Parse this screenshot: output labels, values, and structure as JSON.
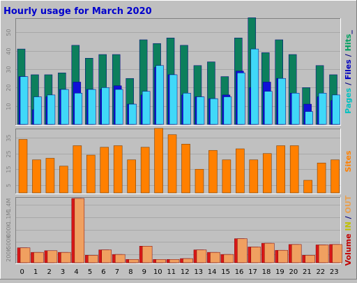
{
  "chart_data": {
    "type": "bar",
    "title": "Hourly usage for March 2020",
    "categories": [
      "0",
      "1",
      "2",
      "3",
      "4",
      "5",
      "6",
      "7",
      "8",
      "9",
      "10",
      "11",
      "12",
      "13",
      "14",
      "15",
      "16",
      "17",
      "18",
      "19",
      "20",
      "21",
      "22",
      "23"
    ],
    "panels": [
      {
        "id": "hits",
        "ylim": [
          0,
          57
        ],
        "yticks": [
          10,
          20,
          30,
          40,
          50
        ],
        "ylabel_parts": [
          {
            "text": "Pages",
            "color": "#00c0c0"
          },
          {
            "text": " / ",
            "color": "#000080"
          },
          {
            "text": "Files",
            "color": "#0000c0"
          },
          {
            "text": " / ",
            "color": "#000080"
          },
          {
            "text": "Hits",
            "color": "#00a060"
          },
          {
            "text": "_",
            "color": "#000080"
          }
        ],
        "series": [
          {
            "name": "Hits",
            "color": "#0c7f5c",
            "values": [
              41,
              27,
              27,
              28,
              43,
              36,
              38,
              38,
              25,
              46,
              44,
              47,
              43,
              32,
              34,
              26,
              47,
              58,
              39,
              46,
              38,
              20,
              32,
              27
            ]
          },
          {
            "name": "Files",
            "color": "#1010d8",
            "values": [
              26,
              8,
              15,
              19,
              23,
              19,
              19,
              21,
              11,
              16,
              31,
              27,
              16,
              15,
              14,
              16,
              29,
              20,
              23,
              25,
              17,
              11,
              15,
              13
            ]
          },
          {
            "name": "Pages",
            "color": "#40d8f8",
            "values": [
              26,
              15,
              16,
              19,
              17,
              19,
              20,
              19,
              11,
              18,
              32,
              27,
              17,
              15,
              14,
              15,
              28,
              41,
              18,
              25,
              17,
              7,
              17,
              16
            ]
          }
        ]
      },
      {
        "id": "sites",
        "ylim": [
          0,
          40
        ],
        "yticks": [
          5,
          15,
          25,
          35
        ],
        "ylabel_parts": [
          {
            "text": "Sites",
            "color": "#ff8000"
          }
        ],
        "series": [
          {
            "name": "Sites",
            "color": "#ff8000",
            "values": [
              34,
              21,
              22,
              17,
              30,
              24,
              29,
              30,
              21,
              29,
              41,
              37,
              31,
              15,
              27,
              21,
              28,
              21,
              25,
              30,
              30,
              8,
              19,
              21
            ]
          }
        ]
      },
      {
        "id": "volume",
        "ylim": [
          0,
          1550
        ],
        "yticks": [
          200,
          500,
          800,
          1100,
          1400
        ],
        "ytick_labels": [
          "200K",
          "500K",
          "800K",
          "1.1M",
          "1.4M"
        ],
        "ylabel_parts": [
          {
            "text": "Volume",
            "color": "#c00000"
          },
          {
            "text": " IN ",
            "color": "#c0c000"
          },
          {
            "text": "/",
            "color": "#000080"
          },
          {
            "text": " OUT",
            "color": "#e8a050"
          }
        ],
        "series": [
          {
            "name": "Volume",
            "color": "#d81818",
            "values": [
              360,
              250,
              290,
              250,
              1550,
              180,
              310,
              200,
              80,
              400,
              80,
              80,
              100,
              310,
              250,
              200,
              580,
              380,
              470,
              300,
              440,
              180,
              430,
              440
            ]
          },
          {
            "name": "IN",
            "color": "#ffff00",
            "values": [
              0,
              0,
              0,
              0,
              0,
              0,
              0,
              0,
              0,
              0,
              0,
              0,
              0,
              0,
              0,
              0,
              0,
              0,
              0,
              0,
              0,
              0,
              0,
              0
            ]
          },
          {
            "name": "OUT",
            "color": "#f0a060",
            "values": [
              360,
              250,
              290,
              250,
              1550,
              180,
              310,
              200,
              80,
              400,
              80,
              80,
              100,
              310,
              250,
              200,
              580,
              380,
              470,
              300,
              440,
              180,
              430,
              440
            ]
          }
        ]
      }
    ]
  }
}
